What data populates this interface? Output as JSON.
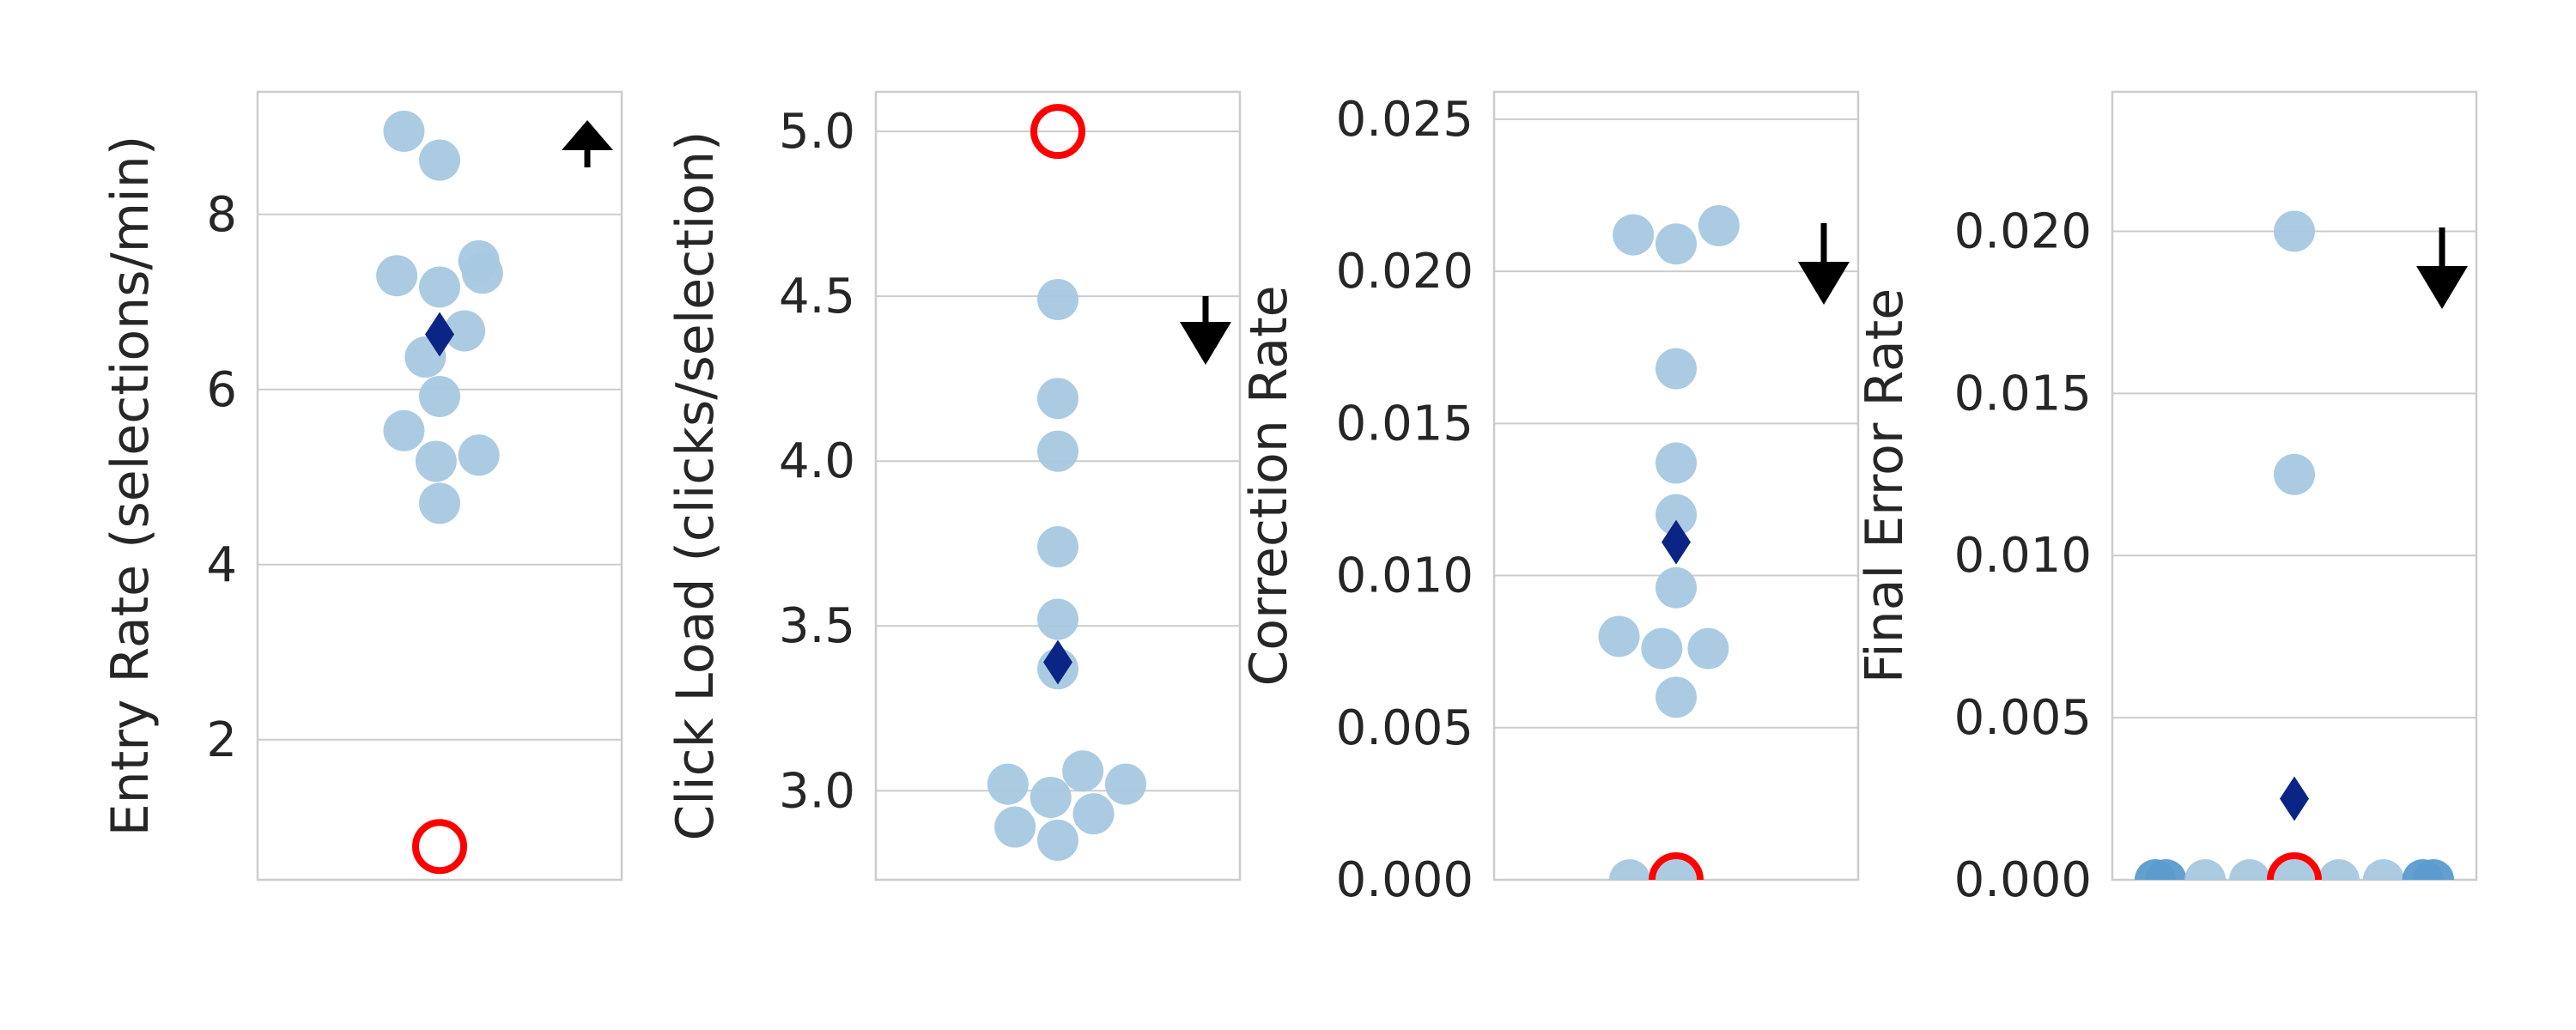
{
  "colors": {
    "point": "#a6c8e0",
    "point_dark": "#5b9bd0",
    "mean": "#0a2585",
    "reference": "#ff0000",
    "arrow": "#000000",
    "grid": "#cccccc",
    "frame": "#cccccc",
    "text": "#262626"
  },
  "chart_data": [
    {
      "type": "scatter",
      "ylabel": "Entry Rate (selections/min)",
      "ylim": [
        0.4,
        9.4
      ],
      "yticks": [
        2,
        4,
        6,
        8
      ],
      "ytick_labels": [
        "2",
        "4",
        "6",
        "8"
      ],
      "grid": true,
      "direction": "up",
      "points": [
        {
          "x": -0.2,
          "y": 8.95
        },
        {
          "x": 0.0,
          "y": 8.62
        },
        {
          "x": 0.22,
          "y": 7.47
        },
        {
          "x": -0.24,
          "y": 7.3
        },
        {
          "x": 0.24,
          "y": 7.33
        },
        {
          "x": 0.0,
          "y": 7.17
        },
        {
          "x": 0.14,
          "y": 6.67
        },
        {
          "x": -0.08,
          "y": 6.37
        },
        {
          "x": 0.0,
          "y": 5.92
        },
        {
          "x": -0.2,
          "y": 5.53
        },
        {
          "x": 0.22,
          "y": 5.25
        },
        {
          "x": -0.02,
          "y": 5.18
        },
        {
          "x": 0.0,
          "y": 4.7
        }
      ],
      "mean": 6.63,
      "reference": 0.78
    },
    {
      "type": "scatter",
      "ylabel": "Click Load (clicks/selection)",
      "ylim": [
        2.73,
        5.12
      ],
      "yticks": [
        3.0,
        3.5,
        4.0,
        4.5,
        5.0
      ],
      "ytick_labels": [
        "3.0",
        "3.5",
        "4.0",
        "4.5",
        "5.0"
      ],
      "grid": true,
      "direction": "down",
      "points": [
        {
          "x": 0.0,
          "y": 4.49
        },
        {
          "x": 0.0,
          "y": 4.19
        },
        {
          "x": 0.0,
          "y": 4.03
        },
        {
          "x": 0.0,
          "y": 3.74
        },
        {
          "x": 0.0,
          "y": 3.52
        },
        {
          "x": 0.0,
          "y": 3.37
        },
        {
          "x": 0.14,
          "y": 3.06
        },
        {
          "x": -0.28,
          "y": 3.02
        },
        {
          "x": 0.38,
          "y": 3.02
        },
        {
          "x": -0.04,
          "y": 2.98
        },
        {
          "x": 0.2,
          "y": 2.93
        },
        {
          "x": -0.24,
          "y": 2.89
        },
        {
          "x": 0.0,
          "y": 2.85
        }
      ],
      "mean": 3.39,
      "reference": 5.0
    },
    {
      "type": "scatter",
      "ylabel": "Correction Rate",
      "ylim": [
        0,
        0.0259
      ],
      "yticks": [
        0.0,
        0.005,
        0.01,
        0.015,
        0.02,
        0.025
      ],
      "ytick_labels": [
        "0.000",
        "0.005",
        "0.010",
        "0.015",
        "0.020",
        "0.025"
      ],
      "grid": true,
      "direction": "down",
      "points": [
        {
          "x": -0.24,
          "y": 0.0212
        },
        {
          "x": 0.24,
          "y": 0.0215
        },
        {
          "x": 0.0,
          "y": 0.0209
        },
        {
          "x": 0.0,
          "y": 0.0168
        },
        {
          "x": 0.0,
          "y": 0.0137
        },
        {
          "x": 0.0,
          "y": 0.012
        },
        {
          "x": 0.0,
          "y": 0.0096
        },
        {
          "x": -0.32,
          "y": 0.008
        },
        {
          "x": -0.08,
          "y": 0.0076
        },
        {
          "x": 0.18,
          "y": 0.0076
        },
        {
          "x": 0.0,
          "y": 0.006
        },
        {
          "x": -0.26,
          "y": 0.0
        },
        {
          "x": 0.0,
          "y": 0.0
        }
      ],
      "mean": 0.0111,
      "reference": 0.0
    },
    {
      "type": "scatter",
      "ylabel": "Final Error Rate",
      "ylim": [
        0,
        0.0243
      ],
      "yticks": [
        0.0,
        0.005,
        0.01,
        0.015,
        0.02
      ],
      "ytick_labels": [
        "0.000",
        "0.005",
        "0.010",
        "0.015",
        "0.020"
      ],
      "grid": true,
      "direction": "down",
      "points": [
        {
          "x": 0.0,
          "y": 0.02
        },
        {
          "x": 0.0,
          "y": 0.0125
        },
        {
          "x": -0.78,
          "y": 0.0
        },
        {
          "x": -0.72,
          "y": 0.0
        },
        {
          "x": -0.5,
          "y": 0.0
        },
        {
          "x": -0.25,
          "y": 0.0
        },
        {
          "x": 0.0,
          "y": 0.0
        },
        {
          "x": 0.25,
          "y": 0.0
        },
        {
          "x": 0.5,
          "y": 0.0
        },
        {
          "x": 0.72,
          "y": 0.0
        },
        {
          "x": 0.78,
          "y": 0.0
        }
      ],
      "mean": 0.0025,
      "reference": 0.0
    }
  ]
}
